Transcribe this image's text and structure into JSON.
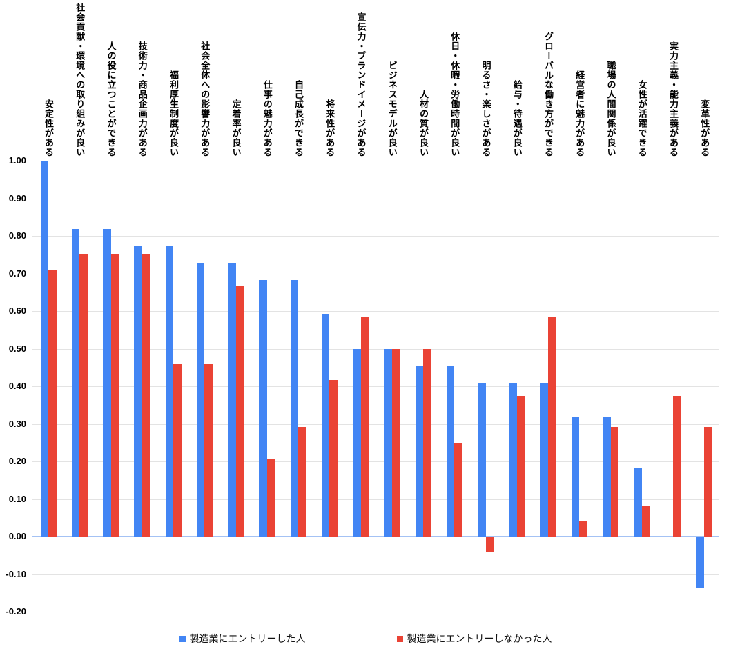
{
  "chart_data": {
    "type": "bar",
    "title": "",
    "categories": [
      "安定性がある",
      "社会貢献・環境への取り組みが良い",
      "人の役に立つことができる",
      "技術力・商品企画力がある",
      "福利厚生制度が良い",
      "社会全体への影響力がある",
      "定着率が良い",
      "仕事の魅力がある",
      "自己成長ができる",
      "将来性がある",
      "宣伝力・ブランドイメージがある",
      "ビジネスモデルが良い",
      "人材の質が良い",
      "休日・休暇・労働時間が良い",
      "明るさ・楽しさがある",
      "給与・待遇が良い",
      "グローバルな働き方ができる",
      "経営者に魅力がある",
      "職場の人間関係が良い",
      "女性が活躍できる",
      "実力主義・能力主義がある",
      "変革性がある"
    ],
    "series": [
      {
        "name": "製造業にエントリーした人",
        "color": "#4285F4",
        "values": [
          1.0,
          0.818,
          0.818,
          0.773,
          0.773,
          0.727,
          0.727,
          0.682,
          0.682,
          0.591,
          0.5,
          0.5,
          0.455,
          0.455,
          0.409,
          0.409,
          0.409,
          0.318,
          0.318,
          0.182,
          0.0,
          -0.136
        ]
      },
      {
        "name": "製造業にエントリーしなかった人",
        "color": "#EA4335",
        "values": [
          0.708,
          0.75,
          0.75,
          0.75,
          0.458,
          0.458,
          0.667,
          0.208,
          0.292,
          0.417,
          0.583,
          0.5,
          0.5,
          0.25,
          -0.042,
          0.375,
          0.583,
          0.042,
          0.292,
          0.083,
          0.375,
          0.292
        ]
      }
    ],
    "yticks": [
      "1.00",
      "0.90",
      "0.80",
      "0.70",
      "0.60",
      "0.50",
      "0.40",
      "0.30",
      "0.20",
      "0.10",
      "0.00",
      "-0.10",
      "-0.20"
    ],
    "ylim": [
      -0.2,
      1.0
    ],
    "grid": "horizontal",
    "legend_position": "bottom"
  },
  "colors": {
    "background": "#ffffff",
    "gridline": "#e3e3e3",
    "zero_line": "#a4c2f4",
    "axis_text": "#000000",
    "legend_text": "#111111"
  }
}
